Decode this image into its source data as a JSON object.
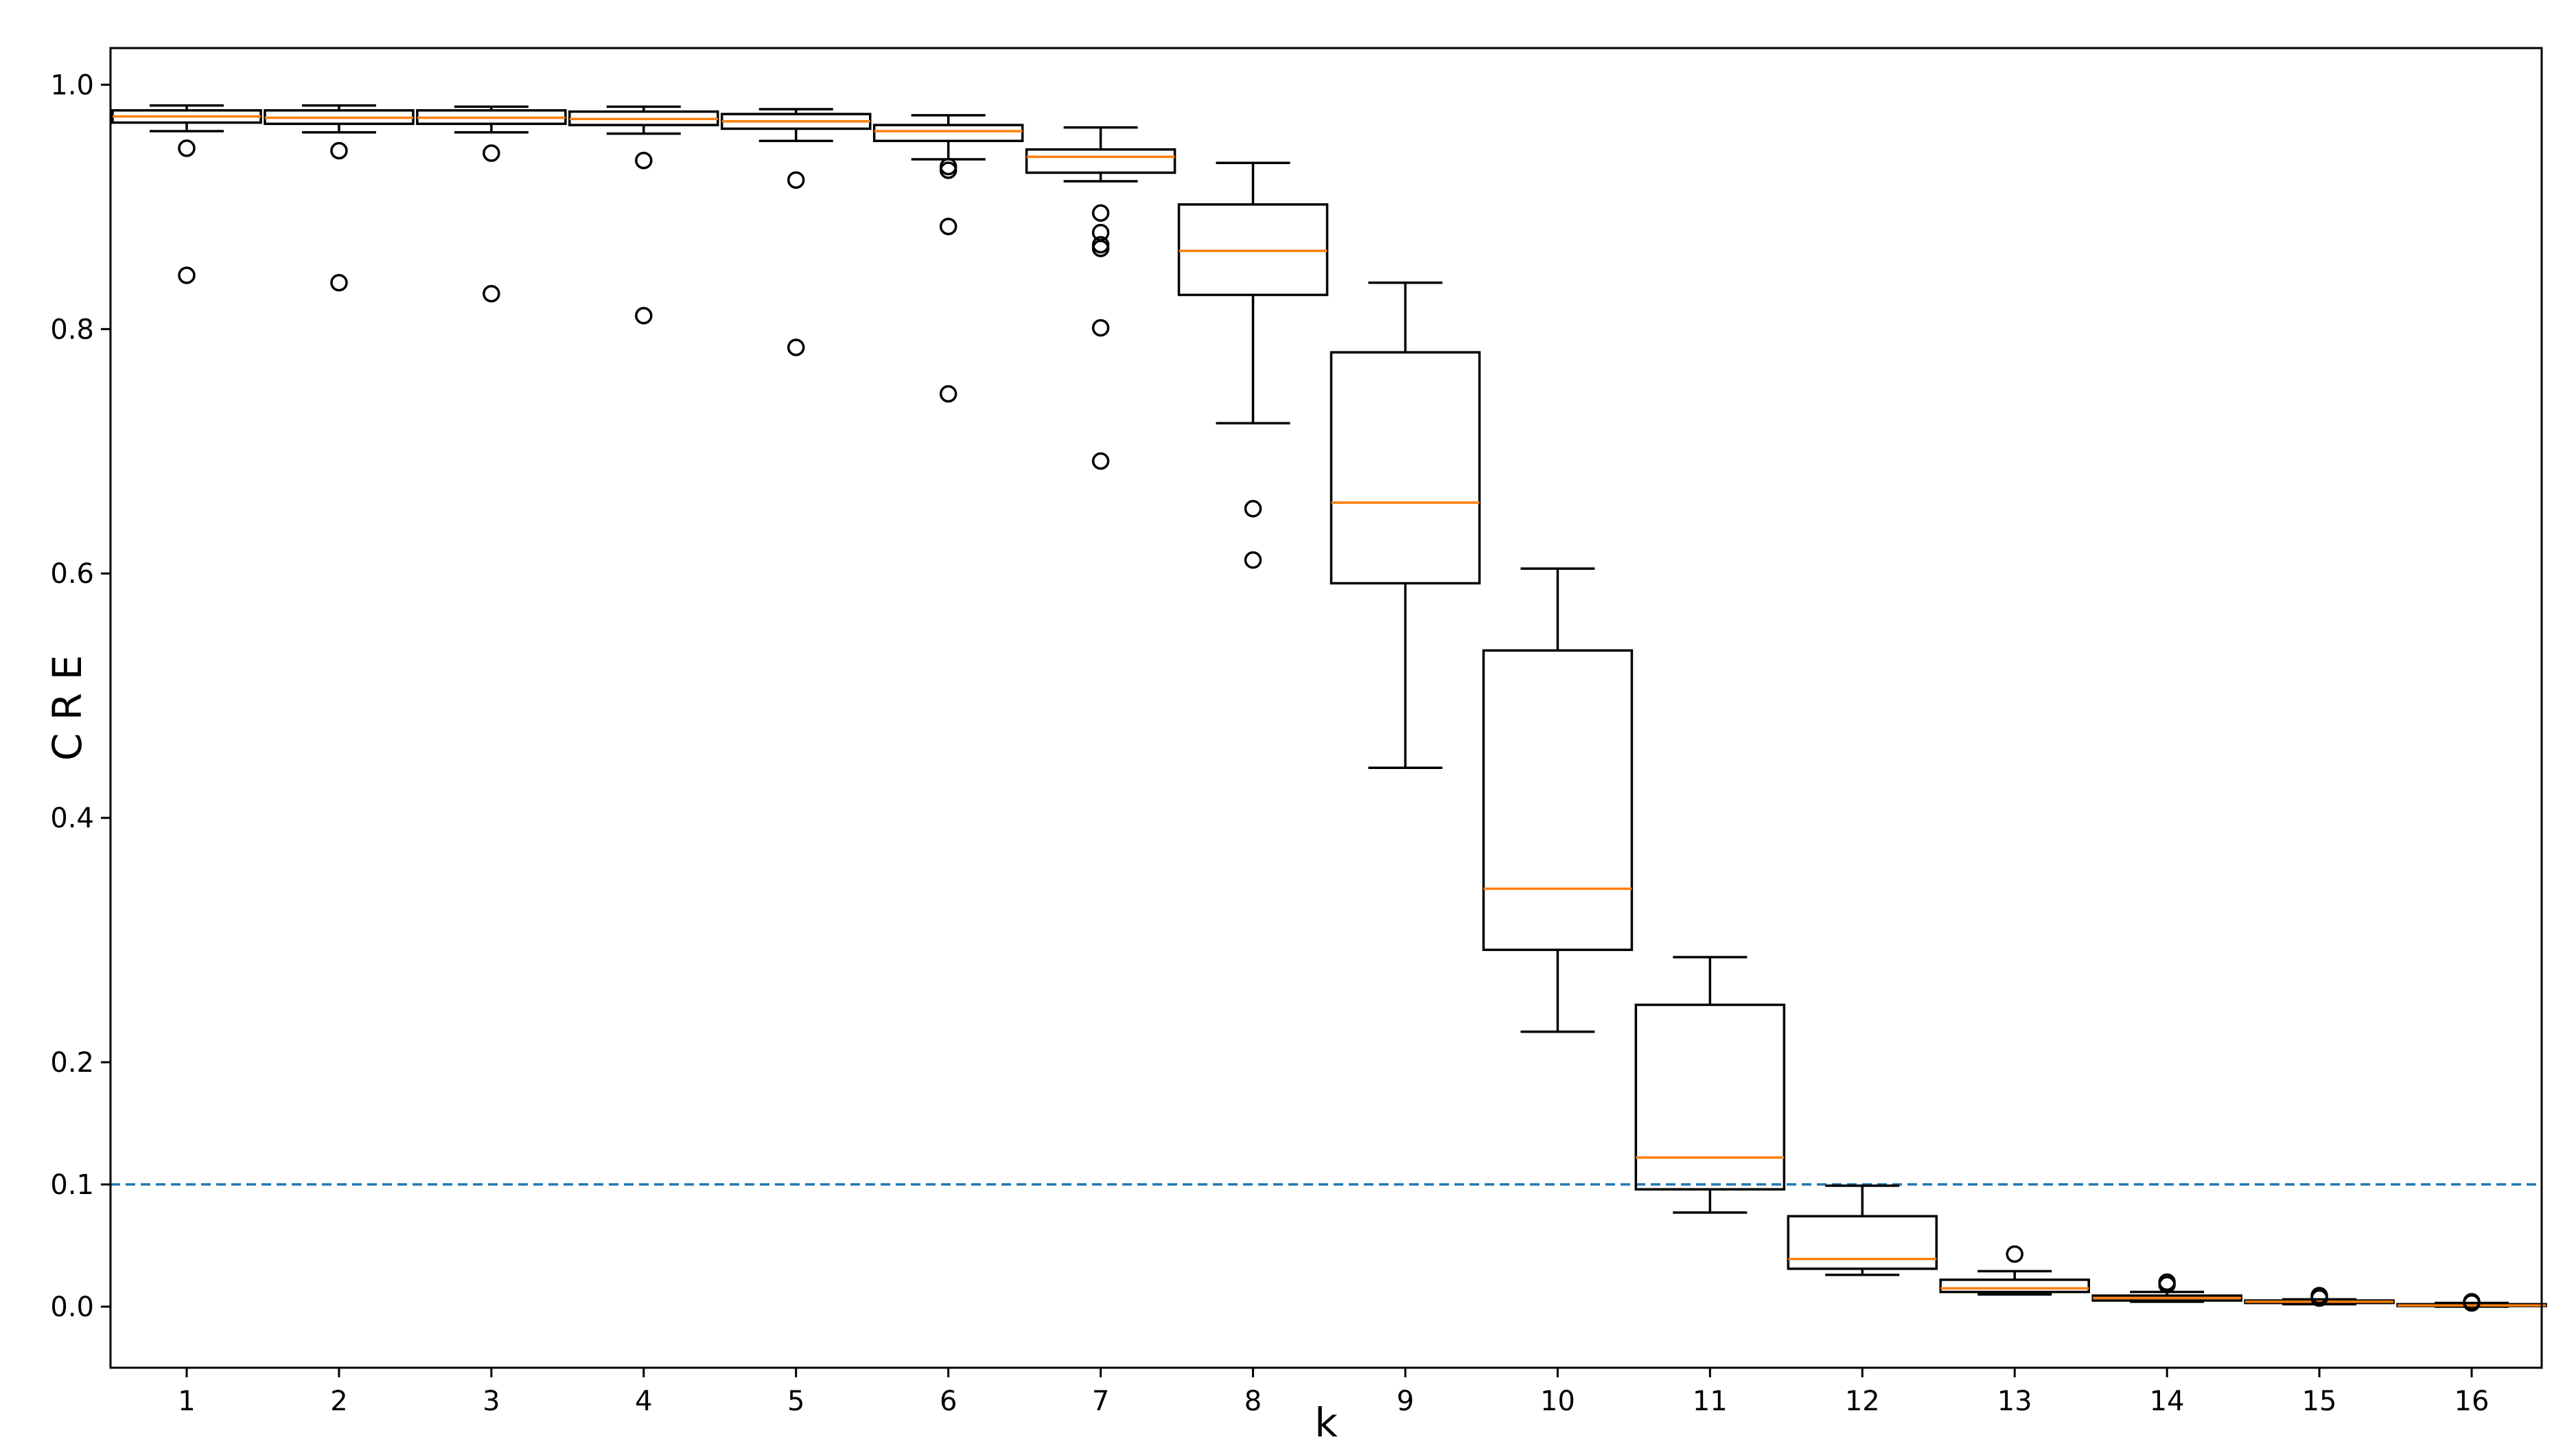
{
  "chart_data": {
    "type": "boxplot",
    "title": "",
    "xlabel": "k",
    "ylabel": "C R E",
    "categories": [
      "1",
      "2",
      "3",
      "4",
      "5",
      "6",
      "7",
      "8",
      "9",
      "10",
      "11",
      "12",
      "13",
      "14",
      "15",
      "16"
    ],
    "ylim": [
      -0.05,
      1.03
    ],
    "yticks": [
      {
        "value": 0.0,
        "label": "0.0"
      },
      {
        "value": 0.1,
        "label": "0.1"
      },
      {
        "value": 0.2,
        "label": "0.2"
      },
      {
        "value": 0.4,
        "label": "0.4"
      },
      {
        "value": 0.6,
        "label": "0.6"
      },
      {
        "value": 0.8,
        "label": "0.8"
      },
      {
        "value": 1.0,
        "label": "1.0"
      }
    ],
    "reference_line": {
      "value": 0.1,
      "style": "dashed",
      "color": "#1f77b4"
    },
    "box_color": "#000000",
    "median_color": "#ff7f0e",
    "boxes": [
      {
        "k": "1",
        "whislo": 0.962,
        "q1": 0.969,
        "med": 0.974,
        "q3": 0.979,
        "whishi": 0.983,
        "fliers": [
          0.948,
          0.844
        ]
      },
      {
        "k": "2",
        "whislo": 0.961,
        "q1": 0.968,
        "med": 0.973,
        "q3": 0.979,
        "whishi": 0.983,
        "fliers": [
          0.946,
          0.838
        ]
      },
      {
        "k": "3",
        "whislo": 0.961,
        "q1": 0.968,
        "med": 0.973,
        "q3": 0.979,
        "whishi": 0.982,
        "fliers": [
          0.944,
          0.829
        ]
      },
      {
        "k": "4",
        "whislo": 0.96,
        "q1": 0.967,
        "med": 0.972,
        "q3": 0.978,
        "whishi": 0.982,
        "fliers": [
          0.938,
          0.811
        ]
      },
      {
        "k": "5",
        "whislo": 0.954,
        "q1": 0.964,
        "med": 0.97,
        "q3": 0.976,
        "whishi": 0.98,
        "fliers": [
          0.922,
          0.785
        ]
      },
      {
        "k": "6",
        "whislo": 0.939,
        "q1": 0.954,
        "med": 0.962,
        "q3": 0.967,
        "whishi": 0.975,
        "fliers": [
          0.933,
          0.93,
          0.884,
          0.747
        ]
      },
      {
        "k": "7",
        "whislo": 0.921,
        "q1": 0.928,
        "med": 0.941,
        "q3": 0.947,
        "whishi": 0.965,
        "fliers": [
          0.895,
          0.879,
          0.869,
          0.866,
          0.801,
          0.692
        ]
      },
      {
        "k": "8",
        "whislo": 0.723,
        "q1": 0.828,
        "med": 0.864,
        "q3": 0.902,
        "whishi": 0.936,
        "fliers": [
          0.653,
          0.611
        ]
      },
      {
        "k": "9",
        "whislo": 0.441,
        "q1": 0.592,
        "med": 0.658,
        "q3": 0.781,
        "whishi": 0.838,
        "fliers": []
      },
      {
        "k": "10",
        "whislo": 0.225,
        "q1": 0.292,
        "med": 0.342,
        "q3": 0.537,
        "whishi": 0.604,
        "fliers": []
      },
      {
        "k": "11",
        "whislo": 0.077,
        "q1": 0.096,
        "med": 0.122,
        "q3": 0.247,
        "whishi": 0.286,
        "fliers": []
      },
      {
        "k": "12",
        "whislo": 0.026,
        "q1": 0.031,
        "med": 0.039,
        "q3": 0.074,
        "whishi": 0.099,
        "fliers": []
      },
      {
        "k": "13",
        "whislo": 0.01,
        "q1": 0.012,
        "med": 0.015,
        "q3": 0.022,
        "whishi": 0.029,
        "fliers": [
          0.043
        ]
      },
      {
        "k": "14",
        "whislo": 0.004,
        "q1": 0.005,
        "med": 0.007,
        "q3": 0.009,
        "whishi": 0.012,
        "fliers": [
          0.018,
          0.02
        ]
      },
      {
        "k": "15",
        "whislo": 0.002,
        "q1": 0.003,
        "med": 0.004,
        "q3": 0.005,
        "whishi": 0.006,
        "fliers": [
          0.007,
          0.009
        ]
      },
      {
        "k": "16",
        "whislo": 0.0,
        "q1": 0.0005,
        "med": 0.001,
        "q3": 0.002,
        "whishi": 0.003,
        "fliers": [
          0.003,
          0.004
        ]
      }
    ]
  }
}
